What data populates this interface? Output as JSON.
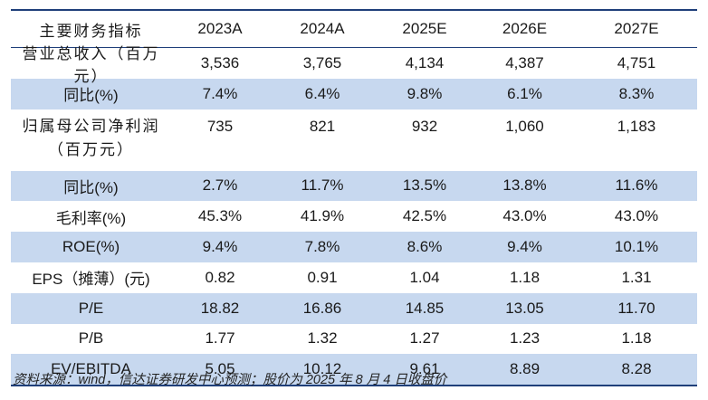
{
  "table": {
    "header": [
      "主要财务指标",
      "2023A",
      "2024A",
      "2025E",
      "2026E",
      "2027E"
    ],
    "rows": [
      {
        "label": "营业总收入（百万元）",
        "values": [
          "3,536",
          "3,765",
          "4,134",
          "4,387",
          "4,751"
        ],
        "shaded": false
      },
      {
        "label": "同比(%)",
        "values": [
          "7.4%",
          "6.4%",
          "9.8%",
          "6.1%",
          "8.3%"
        ],
        "shaded": true
      },
      {
        "label_lines": [
          "归属母公司净利润",
          "（百万元）"
        ],
        "values": [
          "735",
          "821",
          "932",
          "1,060",
          "1,183"
        ],
        "shaded": false
      },
      {
        "label": "同比(%)",
        "values": [
          "2.7%",
          "11.7%",
          "13.5%",
          "13.8%",
          "11.6%"
        ],
        "shaded": true
      },
      {
        "label": "毛利率(%)",
        "values": [
          "45.3%",
          "41.9%",
          "42.5%",
          "43.0%",
          "43.0%"
        ],
        "shaded": false
      },
      {
        "label": "ROE(%)",
        "values": [
          "9.4%",
          "7.8%",
          "8.6%",
          "9.4%",
          "10.1%"
        ],
        "shaded": true
      },
      {
        "label": "EPS（摊薄）(元)",
        "values": [
          "0.82",
          "0.91",
          "1.04",
          "1.18",
          "1.31"
        ],
        "shaded": false
      },
      {
        "label": "P/E",
        "values": [
          "18.82",
          "16.86",
          "14.85",
          "13.05",
          "11.70"
        ],
        "shaded": true
      },
      {
        "label": "P/B",
        "values": [
          "1.77",
          "1.32",
          "1.27",
          "1.23",
          "1.18"
        ],
        "shaded": false
      },
      {
        "label": "EV/EBITDA",
        "values": [
          "5.05",
          "10.12",
          "9.61",
          "8.89",
          "8.28"
        ],
        "shaded": true
      }
    ]
  },
  "source_note": "资料来源：wind，信达证券研发中心预测；股价为 2025 年 8 月 4 日收盘价",
  "colors": {
    "border": "#1f3f7a",
    "shade": "#c7d8ef"
  }
}
